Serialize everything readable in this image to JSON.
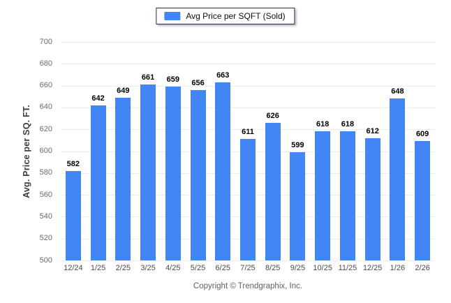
{
  "legend": {
    "label": "Avg Price per SQFT (Sold)",
    "swatch_color": "#4285f4"
  },
  "footer": {
    "copyright": "Copyright © Trendgraphix, Inc."
  },
  "chart_data": {
    "type": "bar",
    "title": "",
    "xlabel": "",
    "ylabel": "Avg. Price per SQ. FT.",
    "ylim": [
      500,
      700
    ],
    "ytick_step": 20,
    "grid": true,
    "legend_position": "top-center",
    "series_name": "Avg Price per SQFT (Sold)",
    "bar_color": "#4285f4",
    "gridline_color": "#ececec",
    "categories": [
      "12/24",
      "1/25",
      "2/25",
      "3/25",
      "4/25",
      "5/25",
      "6/25",
      "7/25",
      "8/25",
      "9/25",
      "10/25",
      "11/25",
      "12/25",
      "1/26",
      "2/26"
    ],
    "values": [
      582,
      642,
      649,
      661,
      659,
      656,
      663,
      611,
      626,
      599,
      618,
      618,
      612,
      648,
      609
    ]
  }
}
